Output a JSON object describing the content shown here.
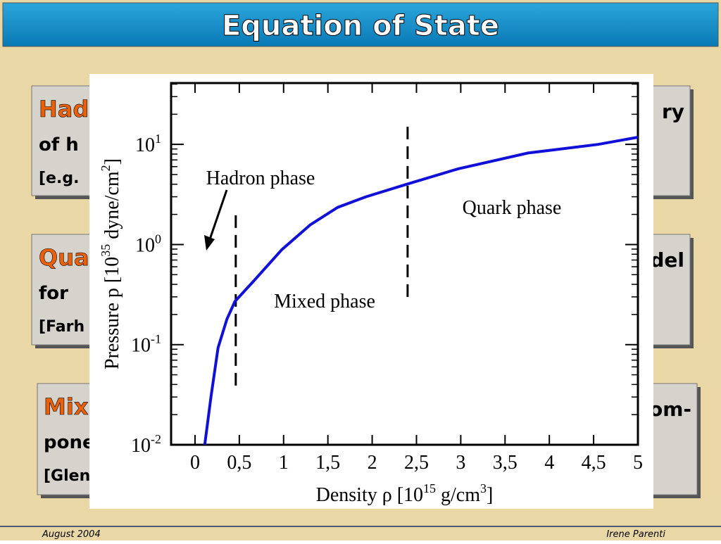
{
  "slide": {
    "title": "Equation of State",
    "footer_left": "August 2004",
    "footer_right": "Irene Parenti",
    "boxes": [
      {
        "heading": "Had",
        "line2": "of h",
        "line3": "[e.g.",
        "right": "ry"
      },
      {
        "heading": "Qua",
        "line2": "for",
        "line3": "[Farh",
        "right": "del"
      },
      {
        "heading": "Mix",
        "line2": "pone",
        "line3": "[Glen",
        "right": "om-"
      }
    ]
  },
  "chart_data": {
    "type": "line",
    "x_label": [
      {
        "text": "Density  ρ  [10"
      },
      {
        "text": "15",
        "sup": true
      },
      {
        "text": " g/cm"
      },
      {
        "text": "3",
        "sup": true
      },
      {
        "text": "]"
      }
    ],
    "y_label": [
      {
        "text": "Pressure  p  [10"
      },
      {
        "text": "35",
        "sup": true
      },
      {
        "text": " dyne/cm"
      },
      {
        "text": "2",
        "sup": true
      },
      {
        "text": "]"
      }
    ],
    "xlim": [
      -0.27,
      5
    ],
    "ylim": [
      0.01,
      41
    ],
    "ylog": true,
    "xticks": [
      0,
      {
        "value": 0.5,
        "label": "0,5"
      },
      1,
      {
        "value": 1.5,
        "label": "1,5"
      },
      2,
      {
        "value": 2.5,
        "label": "2,5"
      },
      3,
      {
        "value": 3.5,
        "label": "3,5"
      },
      4,
      {
        "value": 4.5,
        "label": "4,5"
      },
      5
    ],
    "yticks": [
      {
        "value": 0.01,
        "label": "10",
        "exponent": "-2"
      },
      {
        "value": 0.1,
        "label": "10",
        "exponent": "-1"
      },
      {
        "value": 1,
        "label": "10",
        "exponent": "0"
      },
      {
        "value": 10,
        "label": "10",
        "exponent": "1"
      }
    ],
    "series": [
      {
        "color": "#1010d8",
        "x": [
          0.11,
          0.18,
          0.26,
          0.36,
          0.45,
          0.66,
          0.98,
          1.3,
          1.61,
          1.93,
          2.39,
          2.97,
          3.76,
          4.55,
          5.0
        ],
        "values": [
          0.01,
          0.03,
          0.093,
          0.18,
          0.27,
          0.43,
          0.89,
          1.57,
          2.35,
          3.0,
          4.0,
          5.7,
          8.2,
          10,
          11.8
        ]
      }
    ],
    "boundaries": [
      {
        "x": 0.46,
        "y": [
          0.039,
          2.2
        ]
      },
      {
        "x": 2.4,
        "y": [
          0.3,
          15
        ]
      }
    ],
    "annotations": [
      "Hadron phase",
      "Mixed phase",
      "Quark phase"
    ]
  }
}
